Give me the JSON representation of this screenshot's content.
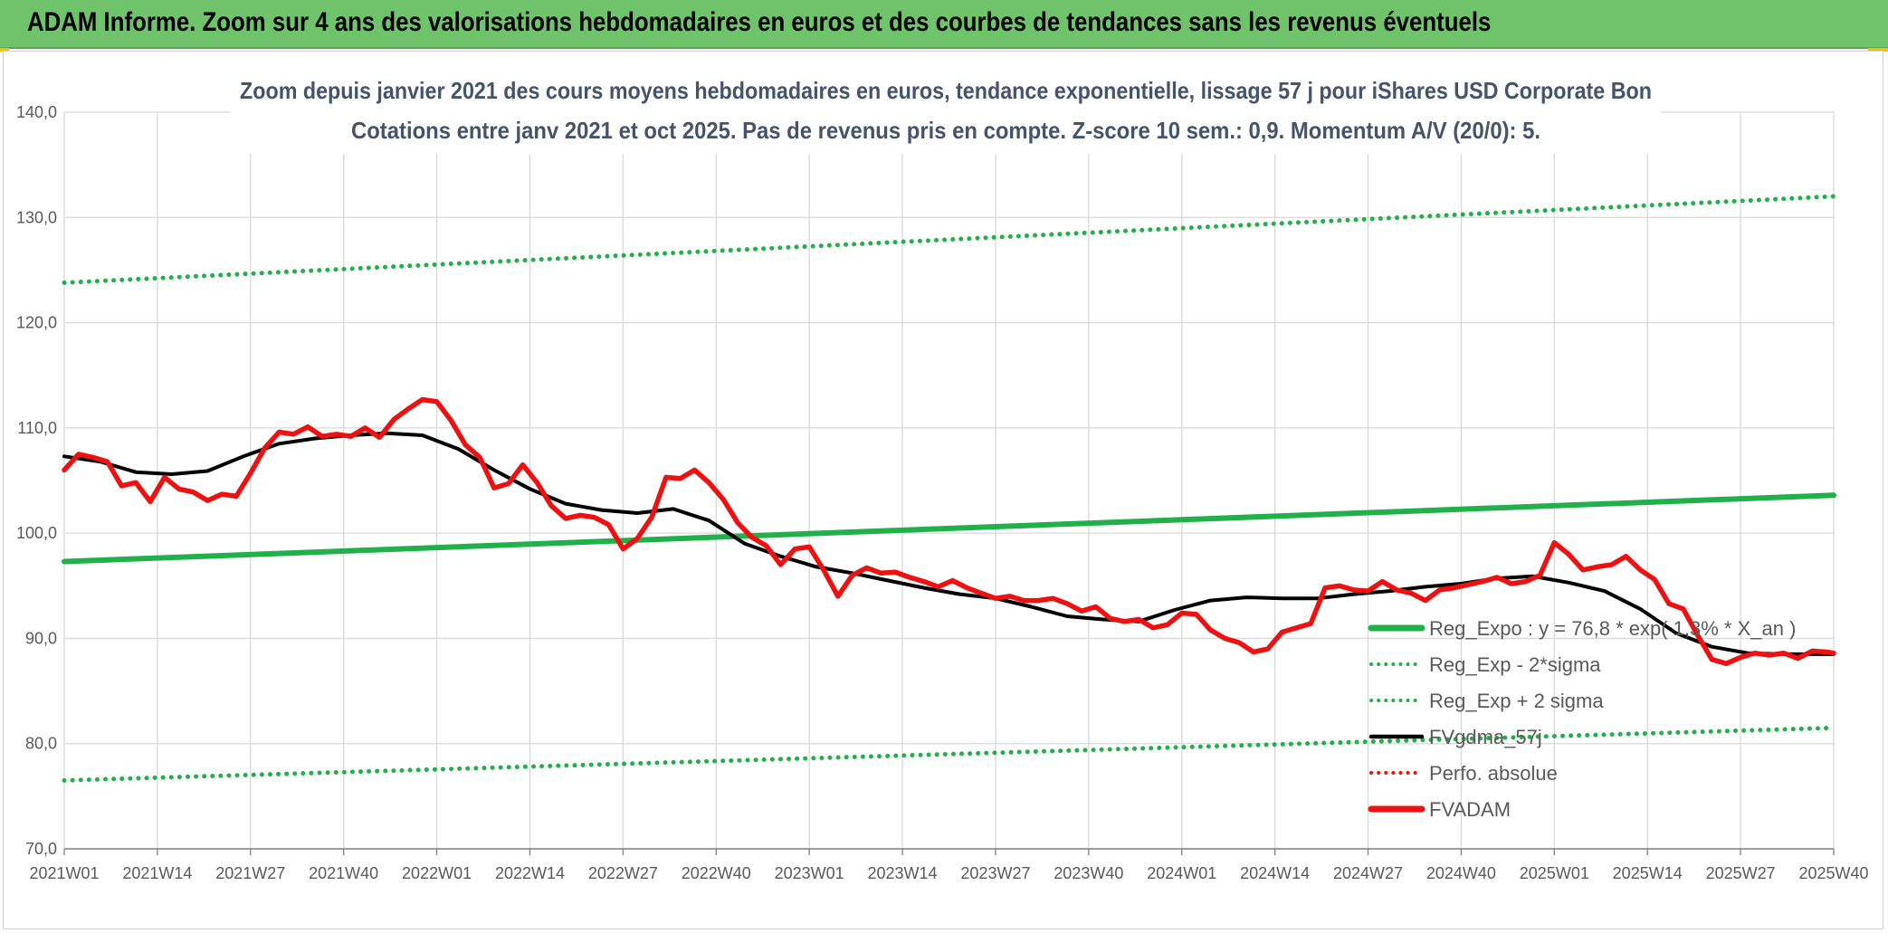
{
  "header": {
    "title": "ADAM Informe. Zoom sur 4 ans des valorisations hebdomadaires en euros et des courbes de tendances sans les revenus éventuels"
  },
  "colors": {
    "banner": "#6fc46b",
    "trend_green": "#22b04b",
    "price_red": "#ee1111",
    "smooth_black": "#000000",
    "grid": "#d9d9d9",
    "title_text": "#44546a",
    "tick_text": "#595959"
  },
  "chart_data": {
    "type": "line",
    "title_line1": "Zoom depuis janvier 2021 des cours moyens hebdomadaires en euros, tendance exponentielle, lissage 57 j pour iShares USD Corporate Bon",
    "title_line2": "Cotations entre janv 2021 et oct 2025. Pas de revenus pris en compte. Z-score 10 sem.: 0,9. Momentum A/V (20/0): 5.",
    "ylim": [
      70,
      140
    ],
    "yticks": [
      "70,0",
      "80,0",
      "90,0",
      "100,0",
      "110,0",
      "120,0",
      "130,0",
      "140,0"
    ],
    "xlim": [
      0,
      247
    ],
    "xticks": [
      {
        "label": "2021W01",
        "index": 0
      },
      {
        "label": "2021W14",
        "index": 13
      },
      {
        "label": "2021W27",
        "index": 26
      },
      {
        "label": "2021W40",
        "index": 39
      },
      {
        "label": "2022W01",
        "index": 52
      },
      {
        "label": "2022W14",
        "index": 65
      },
      {
        "label": "2022W27",
        "index": 78
      },
      {
        "label": "2022W40",
        "index": 91
      },
      {
        "label": "2023W01",
        "index": 104
      },
      {
        "label": "2023W14",
        "index": 117
      },
      {
        "label": "2023W27",
        "index": 130
      },
      {
        "label": "2023W40",
        "index": 143
      },
      {
        "label": "2024W01",
        "index": 156
      },
      {
        "label": "2024W14",
        "index": 169
      },
      {
        "label": "2024W27",
        "index": 182
      },
      {
        "label": "2024W40",
        "index": 195
      },
      {
        "label": "2025W01",
        "index": 208
      },
      {
        "label": "2025W14",
        "index": 221
      },
      {
        "label": "2025W27",
        "index": 234
      },
      {
        "label": "2025W40",
        "index": 247
      }
    ],
    "legend": [
      {
        "label": "Reg_Expo : y = 76,8 * exp( 1,3% *  X_an )",
        "color": "#22b04b",
        "style": "solid-thick"
      },
      {
        "label": "Reg_Exp - 2*sigma",
        "color": "#22b04b",
        "style": "dotted"
      },
      {
        "label": "Reg_Exp + 2 sigma",
        "color": "#22b04b",
        "style": "dotted"
      },
      {
        "label": "FVgdma_57j",
        "color": "#000000",
        "style": "solid"
      },
      {
        "label": "Perfo. absolue",
        "color": "#ee1111",
        "style": "dotted"
      },
      {
        "label": "FVADAM",
        "color": "#ee1111",
        "style": "solid-thick"
      }
    ],
    "series": [
      {
        "name": "Reg_Expo",
        "x": [
          0,
          247
        ],
        "y": [
          97.3,
          103.6
        ]
      },
      {
        "name": "Reg_Exp - 2*sigma",
        "x": [
          0,
          247
        ],
        "y": [
          76.5,
          81.5
        ]
      },
      {
        "name": "Reg_Exp + 2 sigma",
        "x": [
          0,
          247
        ],
        "y": [
          123.8,
          132.0
        ]
      },
      {
        "name": "FVgdma_57j",
        "x": [
          0,
          5,
          10,
          15,
          20,
          25,
          30,
          35,
          40,
          45,
          50,
          55,
          60,
          65,
          70,
          75,
          80,
          85,
          90,
          95,
          100,
          105,
          110,
          115,
          120,
          125,
          130,
          135,
          140,
          145,
          150,
          155,
          160,
          165,
          170,
          175,
          180,
          185,
          190,
          195,
          200,
          205,
          210,
          215,
          220,
          225,
          230,
          235,
          240,
          247
        ],
        "y": [
          107.3,
          106.8,
          105.8,
          105.6,
          105.9,
          107.3,
          108.5,
          109.0,
          109.3,
          109.5,
          109.3,
          108.0,
          106.0,
          104.2,
          102.8,
          102.2,
          101.9,
          102.3,
          101.2,
          99.0,
          97.8,
          96.8,
          96.2,
          95.5,
          94.8,
          94.2,
          93.8,
          93.0,
          92.1,
          91.8,
          91.6,
          92.7,
          93.6,
          93.9,
          93.8,
          93.8,
          94.2,
          94.5,
          94.9,
          95.2,
          95.7,
          95.9,
          95.3,
          94.5,
          92.8,
          90.5,
          89.2,
          88.6,
          88.5,
          88.5
        ]
      },
      {
        "name": "FVADAM",
        "x": [
          0,
          2,
          4,
          6,
          8,
          10,
          12,
          14,
          16,
          18,
          20,
          22,
          24,
          26,
          28,
          30,
          32,
          34,
          36,
          38,
          40,
          42,
          44,
          46,
          48,
          50,
          52,
          54,
          56,
          58,
          60,
          62,
          64,
          66,
          68,
          70,
          72,
          74,
          76,
          78,
          80,
          82,
          84,
          86,
          88,
          90,
          92,
          94,
          96,
          98,
          100,
          102,
          104,
          106,
          108,
          110,
          112,
          114,
          116,
          118,
          120,
          122,
          124,
          126,
          128,
          130,
          132,
          134,
          136,
          138,
          140,
          142,
          144,
          146,
          148,
          150,
          152,
          154,
          156,
          158,
          160,
          162,
          164,
          166,
          168,
          170,
          172,
          174,
          176,
          178,
          180,
          182,
          184,
          186,
          188,
          190,
          192,
          194,
          196,
          198,
          200,
          202,
          204,
          206,
          208,
          210,
          212,
          214,
          216,
          218,
          220,
          222,
          224,
          226,
          228,
          230,
          232,
          234,
          236,
          238,
          240,
          242,
          244,
          246,
          247
        ],
        "y": [
          106.0,
          107.5,
          107.2,
          106.8,
          104.5,
          104.8,
          103.0,
          105.3,
          104.2,
          103.9,
          103.1,
          103.7,
          103.5,
          105.7,
          108.1,
          109.6,
          109.4,
          110.1,
          109.2,
          109.4,
          109.2,
          110.0,
          109.1,
          110.8,
          111.8,
          112.7,
          112.5,
          110.7,
          108.4,
          107.2,
          104.3,
          104.7,
          106.5,
          104.8,
          102.6,
          101.4,
          101.7,
          101.5,
          100.8,
          98.5,
          99.5,
          101.5,
          105.3,
          105.2,
          106.0,
          104.8,
          103.2,
          101.0,
          99.6,
          98.8,
          97.0,
          98.5,
          98.7,
          96.5,
          94.0,
          96.0,
          96.7,
          96.2,
          96.3,
          95.8,
          95.4,
          94.9,
          95.5,
          94.8,
          94.3,
          93.8,
          94.0,
          93.6,
          93.6,
          93.8,
          93.3,
          92.6,
          93.0,
          91.9,
          91.6,
          91.8,
          91.0,
          91.3,
          92.4,
          92.3,
          90.8,
          90.0,
          89.6,
          88.7,
          89.0,
          90.6,
          91.0,
          91.4,
          94.8,
          95.0,
          94.6,
          94.5,
          95.4,
          94.6,
          94.3,
          93.6,
          94.6,
          94.8,
          95.1,
          95.4,
          95.8,
          95.2,
          95.4,
          96.0,
          99.1,
          98.0,
          96.5,
          96.8,
          97.0,
          97.8,
          96.5,
          95.6,
          93.3,
          92.8,
          90.3,
          88.0,
          87.6,
          88.2,
          88.6,
          88.4,
          88.6,
          88.1,
          88.8,
          88.7,
          88.6
        ]
      }
    ]
  }
}
